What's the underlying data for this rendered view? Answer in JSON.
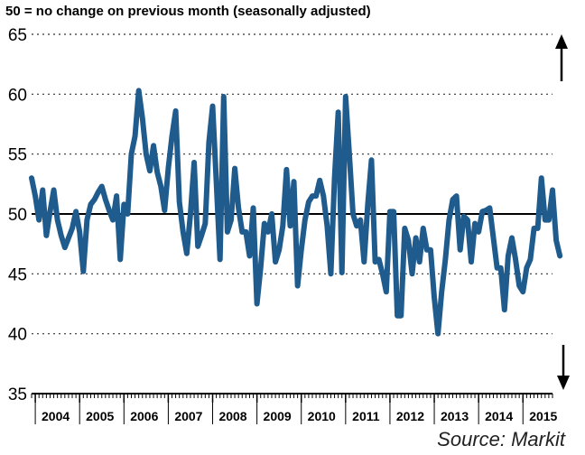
{
  "chart_data": {
    "type": "line",
    "title": "50 = no change on previous month (seasonally adjusted)",
    "source": "Source: Markit",
    "xlabel": "",
    "ylabel": "",
    "ylim": [
      35,
      65
    ],
    "xlim": [
      "2003-12",
      "2015-09"
    ],
    "y_ticks": [
      35,
      40,
      45,
      50,
      55,
      60,
      65
    ],
    "x_tick_labels": [
      "2004",
      "2005",
      "2006",
      "2007",
      "2008",
      "2009",
      "2010",
      "2011",
      "2012",
      "2013",
      "2014",
      "2015"
    ],
    "reference_line": 50,
    "grid": "horizontal dotted",
    "line_color": "#1f5b8c",
    "reference_color": "#000000",
    "series": [
      {
        "start": "2003-12",
        "frequency": "monthly",
        "values": [
          53.0,
          51.5,
          49.5,
          52.0,
          48.2,
          50.2,
          52.0,
          49.5,
          48.2,
          47.2,
          48.0,
          48.8,
          50.2,
          48.5,
          45.2,
          49.5,
          50.8,
          51.2,
          51.8,
          52.3,
          51.2,
          50.3,
          49.5,
          51.5,
          46.2,
          50.8,
          50.0,
          55.0,
          56.5,
          60.3,
          58.0,
          55.0,
          53.6,
          55.7,
          53.5,
          52.3,
          50.3,
          53.8,
          56.5,
          58.6,
          51.0,
          48.5,
          46.7,
          50.0,
          54.3,
          47.3,
          48.2,
          49.2,
          56.0,
          59.0,
          52.7,
          46.2,
          59.8,
          48.5,
          49.5,
          53.8,
          50.5,
          48.5,
          48.5,
          46.5,
          50.5,
          42.5,
          45.5,
          49.2,
          48.5,
          50.0,
          46.0,
          47.0,
          49.0,
          53.7,
          49.0,
          52.7,
          44.0,
          47.0,
          49.5,
          51.0,
          51.5,
          51.5,
          52.8,
          51.5,
          49.0,
          45.0,
          53.0,
          58.5,
          45.1,
          59.8,
          55.0,
          50.0,
          49.0,
          49.5,
          46.0,
          50.8,
          54.5,
          46.0,
          46.2,
          45.0,
          43.5,
          50.2,
          50.2,
          41.5,
          41.5,
          48.8,
          47.8,
          45.0,
          48.0,
          46.0,
          48.8,
          47.0,
          47.0,
          43.0,
          40.0,
          43.5,
          46.2,
          49.5,
          51.2,
          51.5,
          47.0,
          49.8,
          49.5,
          46.0,
          49.2,
          48.5,
          50.2,
          50.3,
          50.5,
          48.0,
          45.5,
          45.5,
          42.0,
          46.5,
          48.0,
          46.2,
          44.0,
          43.5,
          45.5,
          46.2,
          48.8,
          48.8,
          53.0,
          49.5,
          49.5,
          52.0,
          47.8,
          46.5
        ]
      }
    ]
  }
}
